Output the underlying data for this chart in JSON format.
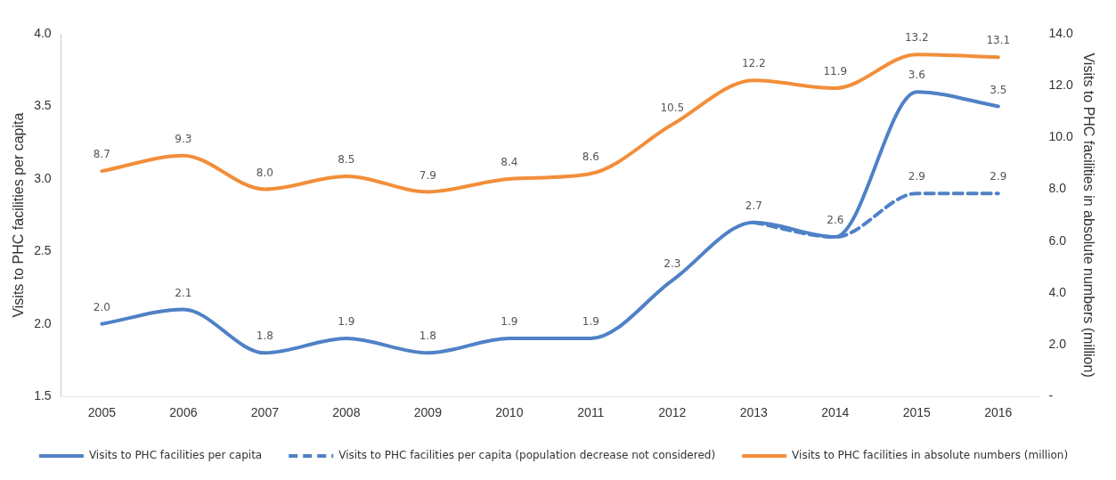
{
  "chart_data": {
    "type": "line",
    "categories": [
      "2005",
      "2006",
      "2007",
      "2008",
      "2009",
      "2010",
      "2011",
      "2012",
      "2013",
      "2014",
      "2015",
      "2016"
    ],
    "ylabel": "Visits to PHC facilities per capita",
    "y2label": "Visits to PHC facilities in absolute numbers (million)",
    "ylim": [
      1.5,
      4.0
    ],
    "yticks": [
      {
        "value": 1.5,
        "label": "1.5"
      },
      {
        "value": 2.0,
        "label": "2.0"
      },
      {
        "value": 2.5,
        "label": "2.5"
      },
      {
        "value": 3.0,
        "label": "3.0"
      },
      {
        "value": 3.5,
        "label": "3.5"
      },
      {
        "value": 4.0,
        "label": "4.0"
      }
    ],
    "y2lim": [
      0,
      14
    ],
    "y2ticks": [
      {
        "value": 0,
        "label": "-"
      },
      {
        "value": 2,
        "label": "2.0"
      },
      {
        "value": 4,
        "label": "4.0"
      },
      {
        "value": 6,
        "label": "6.0"
      },
      {
        "value": 8,
        "label": "8.0"
      },
      {
        "value": 10,
        "label": "10.0"
      },
      {
        "value": 12,
        "label": "12.0"
      },
      {
        "value": 14,
        "label": "14.0"
      }
    ],
    "grid": false,
    "legend": "bottom",
    "marker": "none",
    "series": [
      {
        "name": "Visits to PHC facilities per capita",
        "color": "#4f81c7",
        "line_style": "solid",
        "values": [
          2.0,
          2.1,
          1.8,
          1.9,
          1.8,
          1.9,
          1.9,
          2.3,
          2.7,
          2.6,
          3.6,
          3.5
        ],
        "value_labels": [
          "2.0",
          "2.1",
          "1.8",
          "1.9",
          "1.8",
          "1.9",
          "1.9",
          "2.3",
          "2.7",
          "2.6",
          "3.6",
          "3.5"
        ]
      },
      {
        "name": "Visits to PHC facilities per capita (population decrease not considered)",
        "color": "#4f81c7",
        "line_style": "dashed",
        "values": [
          null,
          null,
          null,
          null,
          null,
          null,
          null,
          null,
          2.7,
          2.6,
          2.9,
          2.9
        ],
        "value_labels": [
          null,
          null,
          null,
          null,
          null,
          null,
          null,
          null,
          null,
          null,
          "2.9",
          "2.9"
        ]
      },
      {
        "name": "Visits to PHC facilities in absolute numbers (million)",
        "color": "#f28e3a",
        "line_style": "solid",
        "axis": "y2",
        "values": [
          8.7,
          9.3,
          8.0,
          8.5,
          7.9,
          8.4,
          8.6,
          10.5,
          12.2,
          11.9,
          13.2,
          13.1
        ],
        "value_labels": [
          "8.7",
          "9.3",
          "8.0",
          "8.5",
          "7.9",
          "8.4",
          "8.6",
          "10.5",
          "12.2",
          "11.9",
          "13.2",
          "13.1"
        ]
      }
    ]
  }
}
